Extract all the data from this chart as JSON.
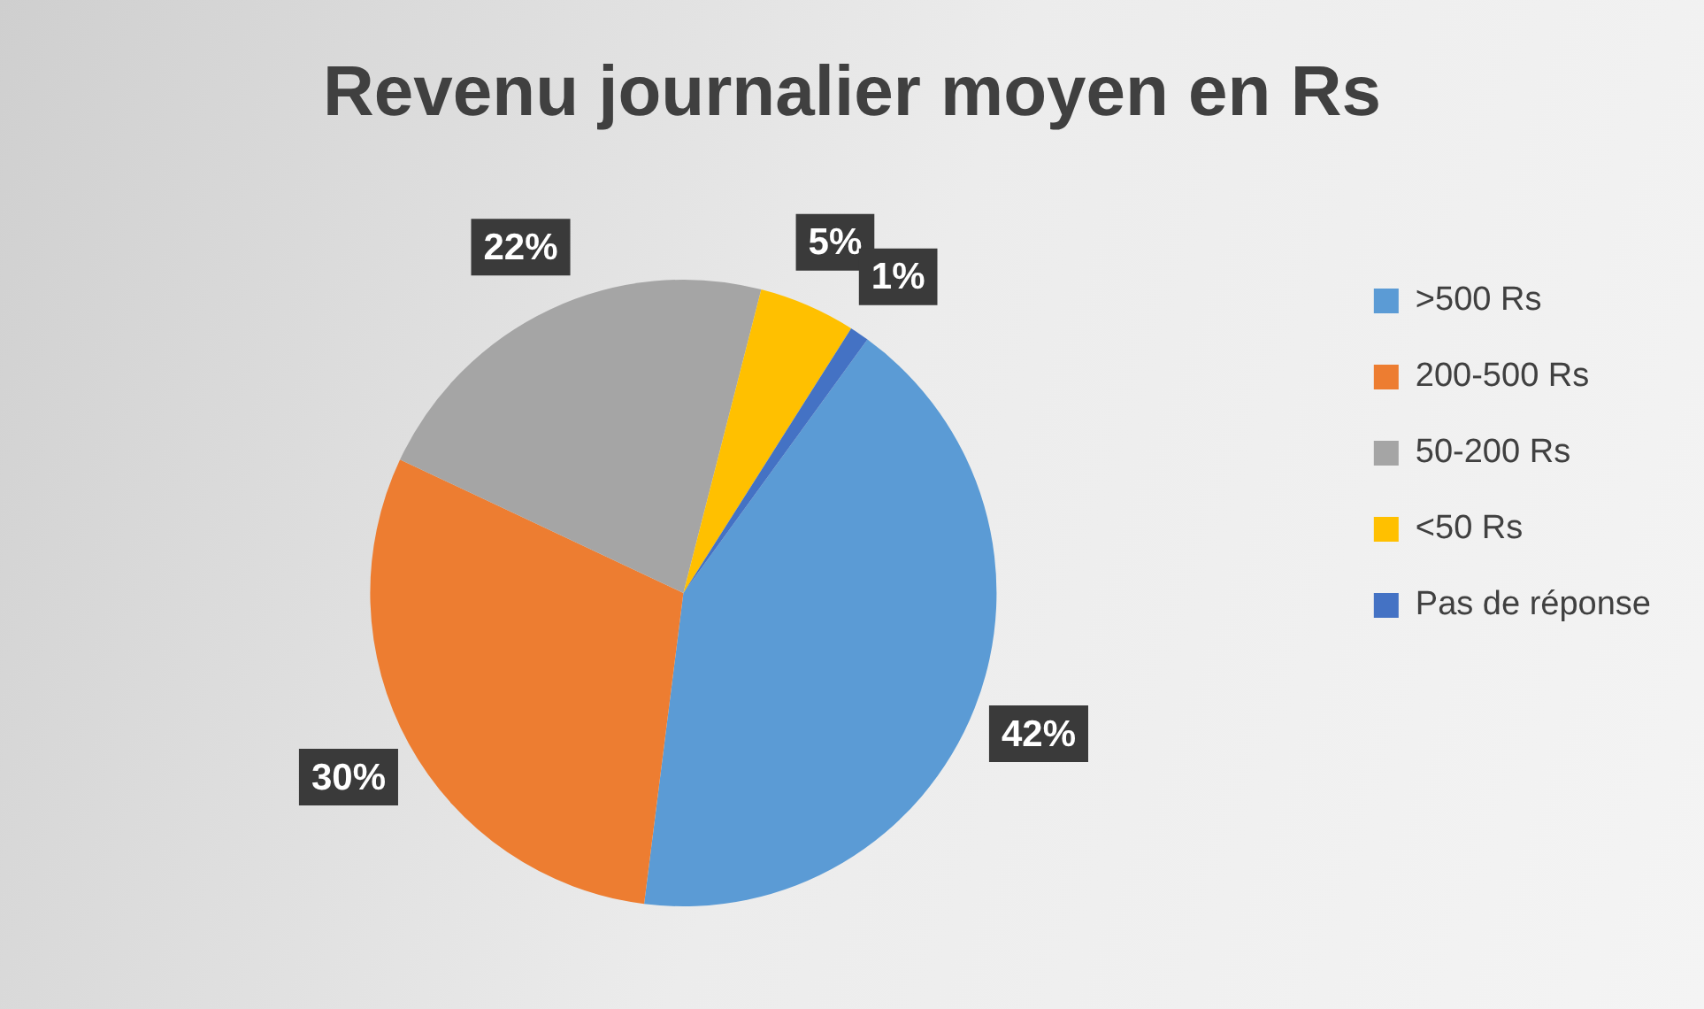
{
  "chart_data": {
    "type": "pie",
    "title": "Revenu journalier moyen en Rs",
    "categories": [
      ">500 Rs",
      "200-500 Rs",
      "50-200 Rs",
      "<50 Rs",
      "Pas de réponse"
    ],
    "values": [
      42,
      30,
      22,
      5,
      1
    ],
    "value_labels": [
      "42%",
      "30%",
      "22%",
      "5%",
      "1%"
    ],
    "colors": [
      "#5b9bd5",
      "#ed7d31",
      "#a5a5a5",
      "#ffc000",
      "#4472c4"
    ],
    "legend": "right"
  }
}
